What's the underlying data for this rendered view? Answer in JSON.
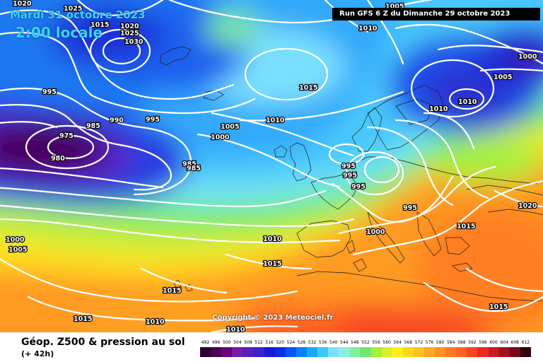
{
  "header": {
    "date": "Mardi 31 octobre 2023",
    "time": "2:00 locale",
    "run": "Run GFS 6 Z du Dimanche 29 octobre 2023"
  },
  "copyright": "Copyright © 2023 Meteociel.fr",
  "footer": {
    "title": "Géop. Z500 & pression au sol",
    "subtitle": "(+ 42h)"
  },
  "legend": {
    "values": [
      "492",
      "496",
      "500",
      "504",
      "508",
      "512",
      "516",
      "520",
      "524",
      "528",
      "532",
      "536",
      "540",
      "544",
      "548",
      "552",
      "556",
      "560",
      "564",
      "568",
      "572",
      "576",
      "580",
      "584",
      "588",
      "592",
      "596",
      "600",
      "604",
      "608",
      "612"
    ],
    "colors": [
      "#2b0030",
      "#4a0055",
      "#6a0080",
      "#7a1aa8",
      "#5a1fbf",
      "#3a22cc",
      "#1a18d8",
      "#0a2ee8",
      "#0a55f0",
      "#0a80f5",
      "#18a8fa",
      "#3cc8fc",
      "#7ae0ff",
      "#8ef0e0",
      "#7ef0a0",
      "#6ee870",
      "#a8ee3a",
      "#d8f02a",
      "#fff018",
      "#ffd818",
      "#ffc020",
      "#ffa822",
      "#ff9022",
      "#ff7a20",
      "#ff6420",
      "#f84420",
      "#e82a20",
      "#c81a20",
      "#a01020",
      "#780818",
      "#300008"
    ]
  },
  "isobars": [
    {
      "value": "1020",
      "label_pos": "top-left"
    },
    {
      "value": "1025",
      "label_pos": "top-left"
    },
    {
      "value": "1015",
      "label_pos": "top-left"
    },
    {
      "value": "1020",
      "label_pos": "top-left"
    },
    {
      "value": "1025",
      "label_pos": "top-left"
    },
    {
      "value": "1030",
      "label_pos": "top-left"
    },
    {
      "value": "1005",
      "label_pos": "top-center"
    },
    {
      "value": "1010",
      "label_pos": "top-center"
    },
    {
      "value": "1015",
      "label_pos": "north-atlantic"
    },
    {
      "value": "995",
      "label_pos": "west"
    },
    {
      "value": "985",
      "label_pos": "west"
    },
    {
      "value": "990",
      "label_pos": "west"
    },
    {
      "value": "995",
      "label_pos": "west"
    },
    {
      "value": "975",
      "label_pos": "west"
    },
    {
      "value": "980",
      "label_pos": "west"
    },
    {
      "value": "1005",
      "label_pos": "center"
    },
    {
      "value": "1000",
      "label_pos": "center"
    },
    {
      "value": "1010",
      "label_pos": "center"
    },
    {
      "value": "985",
      "label_pos": "center"
    },
    {
      "value": "985",
      "label_pos": "center"
    },
    {
      "value": "995",
      "label_pos": "europe"
    },
    {
      "value": "995",
      "label_pos": "europe"
    },
    {
      "value": "995",
      "label_pos": "europe"
    },
    {
      "value": "995",
      "label_pos": "europe"
    },
    {
      "value": "1000",
      "label_pos": "europe"
    },
    {
      "value": "1010",
      "label_pos": "scandinavia"
    },
    {
      "value": "1010",
      "label_pos": "scandinavia"
    },
    {
      "value": "1005",
      "label_pos": "scandinavia"
    },
    {
      "value": "1000",
      "label_pos": "scandinavia"
    },
    {
      "value": "1020",
      "label_pos": "east"
    },
    {
      "value": "1015",
      "label_pos": "east"
    },
    {
      "value": "1000",
      "label_pos": "west"
    },
    {
      "value": "1005",
      "label_pos": "west"
    },
    {
      "value": "1010",
      "label_pos": "south"
    },
    {
      "value": "1015",
      "label_pos": "south"
    },
    {
      "value": "1015",
      "label_pos": "south"
    },
    {
      "value": "1015",
      "label_pos": "south"
    },
    {
      "value": "1010",
      "label_pos": "south"
    },
    {
      "value": "1010",
      "label_pos": "south"
    },
    {
      "value": "1015",
      "label_pos": "south-east"
    }
  ]
}
